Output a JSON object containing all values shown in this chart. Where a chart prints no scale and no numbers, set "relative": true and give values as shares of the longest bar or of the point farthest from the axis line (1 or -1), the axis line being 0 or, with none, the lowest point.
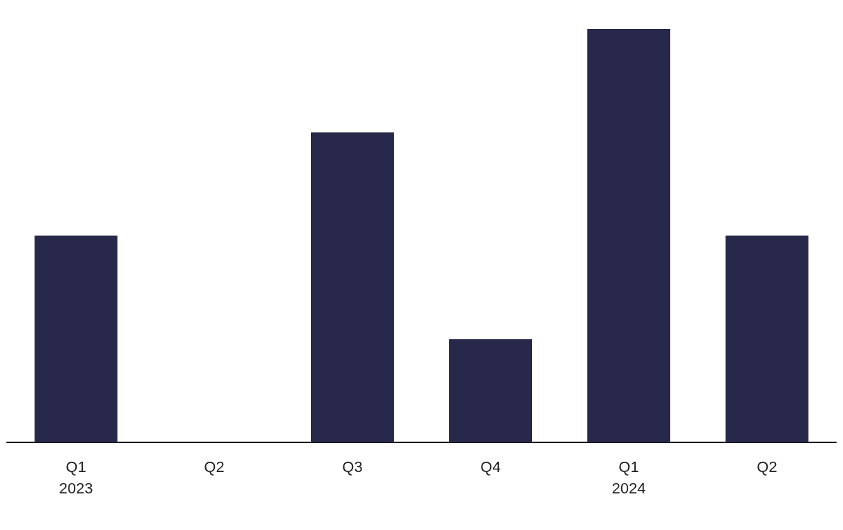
{
  "chart_data": {
    "type": "bar",
    "relative": true,
    "categories": [
      "Q1\n2023",
      "Q2",
      "Q3",
      "Q4",
      "Q1\n2024",
      "Q2"
    ],
    "values": [
      0.5,
      0,
      0.75,
      0.25,
      1,
      0.5
    ],
    "color": "#28284b"
  }
}
